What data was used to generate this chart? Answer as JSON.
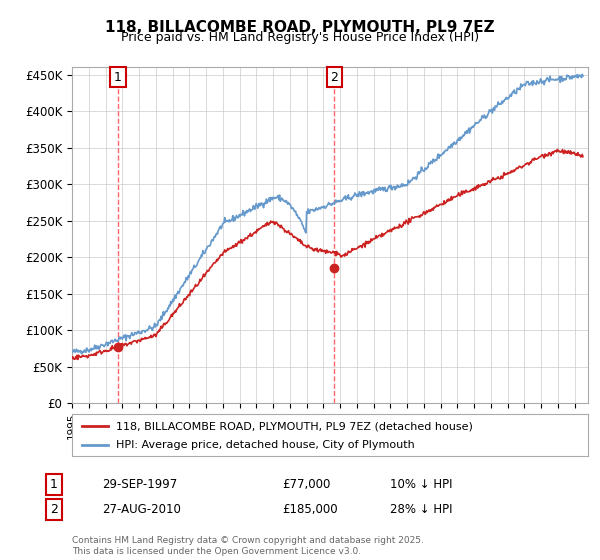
{
  "title": "118, BILLACOMBE ROAD, PLYMOUTH, PL9 7EZ",
  "subtitle": "Price paid vs. HM Land Registry's House Price Index (HPI)",
  "ylim": [
    0,
    460000
  ],
  "yticks": [
    0,
    50000,
    100000,
    150000,
    200000,
    250000,
    300000,
    350000,
    400000,
    450000
  ],
  "ytick_labels": [
    "£0",
    "£50K",
    "£100K",
    "£150K",
    "£200K",
    "£250K",
    "£300K",
    "£350K",
    "£400K",
    "£450K"
  ],
  "hpi_color": "#6699cc",
  "price_color": "#cc2222",
  "annotation_color": "#cc0000",
  "vline_color": "#ff6666",
  "purchase1_year": 1997.75,
  "purchase1_price": 77000,
  "purchase2_year": 2010.65,
  "purchase2_price": 185000,
  "legend_label1": "118, BILLACOMBE ROAD, PLYMOUTH, PL9 7EZ (detached house)",
  "legend_label2": "HPI: Average price, detached house, City of Plymouth",
  "table_row1": [
    "1",
    "29-SEP-1997",
    "£77,000",
    "10% ↓ HPI"
  ],
  "table_row2": [
    "2",
    "27-AUG-2010",
    "£185,000",
    "28% ↓ HPI"
  ],
  "footer": "Contains HM Land Registry data © Crown copyright and database right 2025.\nThis data is licensed under the Open Government Licence v3.0.",
  "bg_color": "#ffffff",
  "grid_color": "#cccccc"
}
